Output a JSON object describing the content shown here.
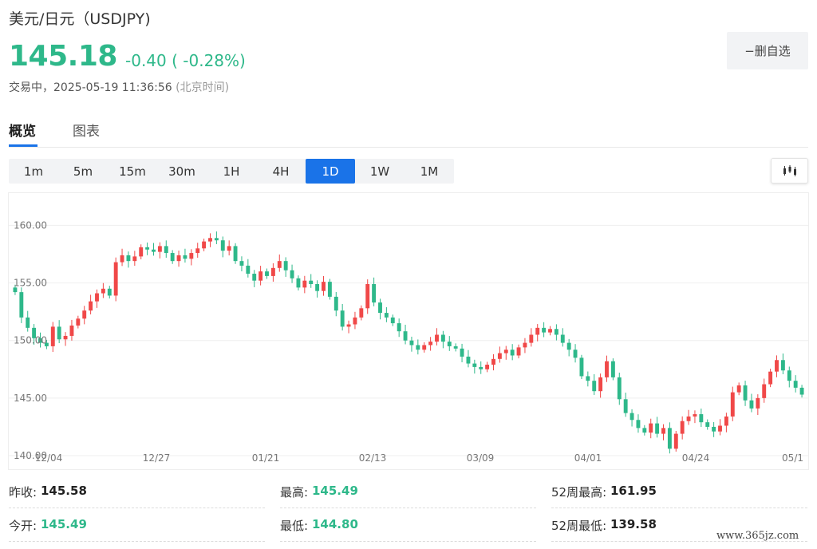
{
  "header": {
    "title": "美元/日元（USDJPY)",
    "price": "145.18",
    "change": "-0.40 ( -0.28%)",
    "status_label": "交易中，",
    "timestamp": "2025-05-19 11:36:56",
    "timezone": "(北京时间)",
    "watch_button": "−删自选"
  },
  "tabs": [
    {
      "label": "概览"
    },
    {
      "label": "图表"
    }
  ],
  "ranges": [
    {
      "label": "1m"
    },
    {
      "label": "5m"
    },
    {
      "label": "15m"
    },
    {
      "label": "30m"
    },
    {
      "label": "1H"
    },
    {
      "label": "4H"
    },
    {
      "label": "1D"
    },
    {
      "label": "1W"
    },
    {
      "label": "1M"
    }
  ],
  "active_range": "1D",
  "colors": {
    "up": "#f04848",
    "down": "#2eb88a",
    "accent": "#1a73e8"
  },
  "chart_data": {
    "type": "candlestick",
    "title": "",
    "ylim": [
      140,
      161
    ],
    "yticks": [
      "160.00",
      "155.00",
      "150.00",
      "145.00",
      "140.00"
    ],
    "xticks": [
      "12/04",
      "12/27",
      "01/21",
      "02/13",
      "03/09",
      "04/01",
      "04/24",
      "05/1"
    ],
    "grid": true,
    "closes": [
      154.2,
      152.0,
      151.1,
      150.2,
      149.8,
      149.5,
      151.2,
      150.1,
      150.4,
      151.3,
      151.9,
      152.6,
      153.4,
      154.1,
      154.5,
      153.9,
      156.8,
      157.4,
      156.9,
      157.3,
      158.1,
      157.9,
      157.7,
      158.2,
      157.6,
      156.9,
      157.4,
      157.1,
      157.6,
      158.0,
      158.6,
      158.9,
      158.7,
      157.8,
      158.2,
      156.9,
      156.5,
      155.8,
      155.2,
      156.0,
      155.6,
      156.3,
      156.9,
      156.1,
      155.4,
      154.6,
      155.2,
      154.9,
      154.3,
      155.1,
      153.8,
      152.6,
      151.2,
      151.4,
      152.0,
      152.8,
      154.9,
      153.3,
      152.4,
      152.0,
      151.5,
      150.8,
      150.0,
      149.6,
      149.2,
      149.6,
      149.9,
      150.5,
      149.9,
      149.5,
      149.3,
      148.6,
      148.0,
      147.7,
      147.5,
      147.9,
      148.4,
      148.9,
      149.2,
      148.7,
      149.4,
      149.8,
      150.5,
      151.1,
      150.7,
      151.0,
      150.5,
      149.8,
      149.2,
      148.5,
      146.9,
      146.5,
      145.6,
      146.8,
      148.2,
      146.8,
      144.9,
      143.7,
      143.1,
      142.4,
      142.0,
      142.8,
      141.9,
      142.4,
      140.6,
      141.9,
      143.0,
      143.4,
      143.6,
      142.9,
      142.5,
      142.1,
      142.6,
      143.4,
      145.5,
      146.1,
      144.8,
      144.1,
      145.0,
      146.2,
      147.3,
      148.3,
      147.4,
      146.5,
      145.9,
      145.3
    ]
  },
  "stats": [
    {
      "label": "昨收:",
      "value": "145.58",
      "color": "#222222"
    },
    {
      "label": "最高:",
      "value": "145.49",
      "color": "#2eb88a"
    },
    {
      "label": "52周最高:",
      "value": "161.95",
      "color": "#222222"
    },
    {
      "label": "今开:",
      "value": "145.49",
      "color": "#2eb88a"
    },
    {
      "label": "最低:",
      "value": "144.80",
      "color": "#2eb88a"
    },
    {
      "label": "52周最低:",
      "value": "139.58",
      "color": "#222222"
    }
  ],
  "watermark": "www.365jz.com"
}
